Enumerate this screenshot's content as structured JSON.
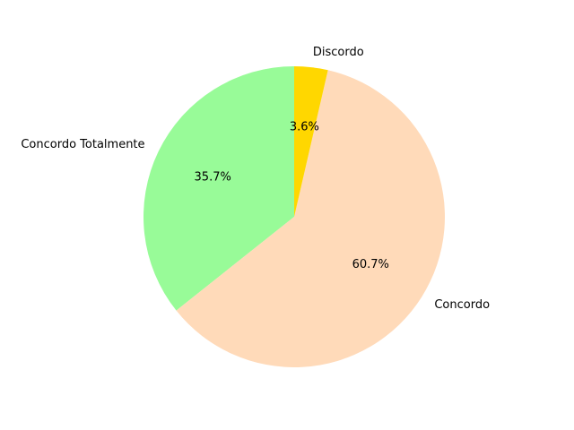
{
  "chart_data": {
    "type": "pie",
    "title": "",
    "start_angle_deg": 90,
    "counterclockwise": true,
    "slices": [
      {
        "label": "Concordo Totalmente",
        "value": 35.7,
        "pct_label": "35.7%",
        "color": "#98fb98"
      },
      {
        "label": "Concordo",
        "value": 60.7,
        "pct_label": "60.7%",
        "color": "#ffdab9"
      },
      {
        "label": "Discordo",
        "value": 3.6,
        "pct_label": "3.6%",
        "color": "#ffd700"
      }
    ]
  }
}
